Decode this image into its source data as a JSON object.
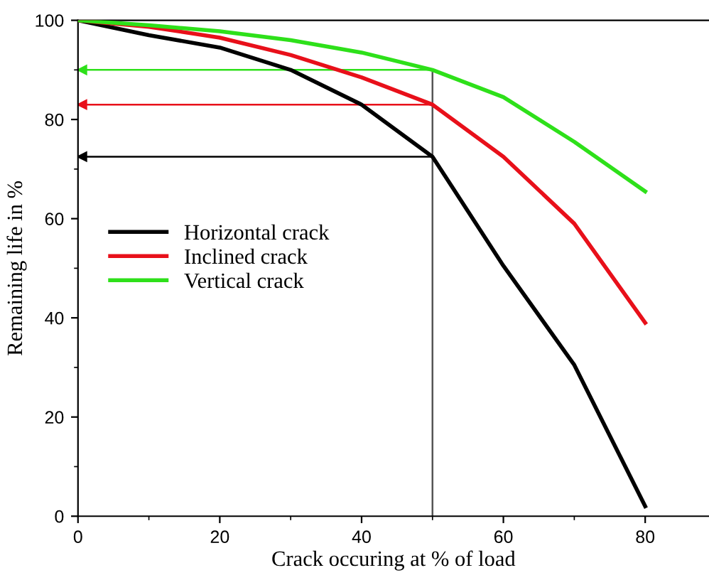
{
  "chart_data": {
    "type": "line",
    "xlabel": "Crack occuring at % of load",
    "ylabel": "Remaining life in %",
    "x": [
      0,
      10,
      20,
      30,
      40,
      50,
      60,
      70,
      80
    ],
    "xlim": [
      0,
      89
    ],
    "xticks": [
      0,
      20,
      40,
      60,
      80
    ],
    "ylim": [
      0,
      100
    ],
    "yticks": [
      0,
      20,
      40,
      60,
      80,
      100
    ],
    "series": [
      {
        "name": "Horizontal crack",
        "color": "#000000",
        "values": [
          100,
          97,
          94.5,
          90,
          83,
          72.5,
          50.5,
          30.5,
          2
        ]
      },
      {
        "name": "Inclined crack",
        "color": "#e8101a",
        "values": [
          100,
          98.7,
          96.5,
          93,
          88.5,
          83,
          72.5,
          59,
          39
        ]
      },
      {
        "name": "Vertical crack",
        "color": "#2ee01a",
        "values": [
          100,
          99,
          97.8,
          96,
          93.5,
          90,
          84.5,
          75.5,
          65.5
        ]
      }
    ],
    "ref_lines": [
      {
        "axis": "x",
        "value": 50,
        "color": "#555555"
      },
      {
        "axis": "y",
        "value": 72.5,
        "color": "#000000"
      },
      {
        "axis": "y",
        "value": 83,
        "color": "#e8101a"
      },
      {
        "axis": "y",
        "value": 90,
        "color": "#2ee01a"
      }
    ],
    "legend": "left",
    "grid": false,
    "marker": "none",
    "line_style": "solid"
  }
}
